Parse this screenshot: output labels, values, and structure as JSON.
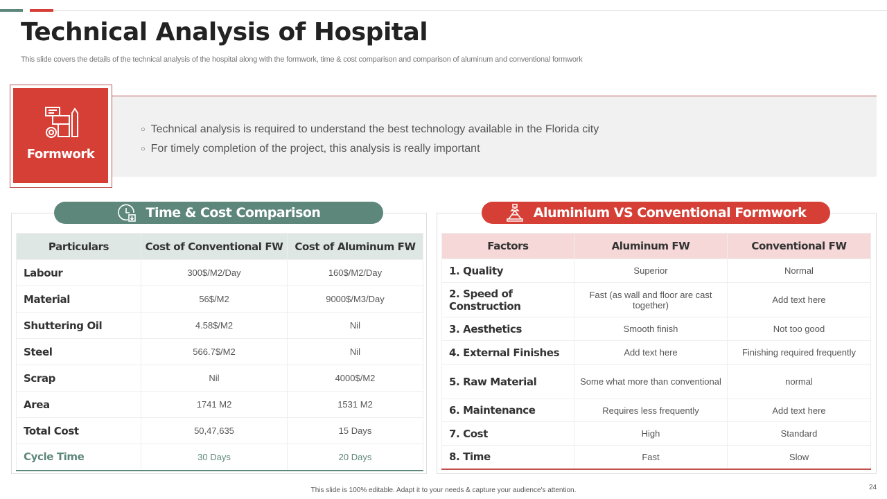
{
  "header": {
    "title": "Technical Analysis of Hospital",
    "subtitle": "This slide covers the details of the technical analysis of the hospital along with the formwork, time & cost comparison and comparison of aluminum and conventional formwork"
  },
  "formwork": {
    "label": "Formwork",
    "icon": "blueprint-gear-pencil-icon",
    "bullets": [
      "Technical analysis is required to understand the best technology  available in the Florida city",
      "For timely completion of the project, this analysis is really important"
    ]
  },
  "time_cost": {
    "title": "Time & Cost Comparison",
    "icon": "clock-download-icon",
    "color": "#5e877b",
    "headers": [
      "Particulars",
      "Cost of Conventional FW",
      "Cost of Aluminum FW"
    ],
    "rows": [
      [
        "Labour",
        "300$/M2/Day",
        "160$/M2/Day"
      ],
      [
        "Material",
        "56$/M2",
        "9000$/M3/Day"
      ],
      [
        "Shuttering Oil",
        "4.58$/M2",
        "Nil"
      ],
      [
        "Steel",
        "566.7$/M2",
        "Nil"
      ],
      [
        "Scrap",
        "Nil",
        "4000$/M2"
      ],
      [
        "Area",
        "1741 M2",
        "1531 M2"
      ],
      [
        "Total Cost",
        "50,47,635",
        "15 Days"
      ],
      [
        "Cycle Time",
        "30 Days",
        "20 Days"
      ]
    ]
  },
  "alu_conv": {
    "title": "Aluminium VS Conventional Formwork",
    "icon": "building-crane-icon",
    "color": "#d63f36",
    "headers": [
      "Factors",
      "Aluminum FW",
      "Conventional FW"
    ],
    "rows": [
      [
        "1. Quality",
        "Superior",
        "Normal"
      ],
      [
        "2. Speed of Construction",
        "Fast (as wall and floor are cast together)",
        "Add text here"
      ],
      [
        "3. Aesthetics",
        "Smooth finish",
        "Not too good"
      ],
      [
        "4. External Finishes",
        "Add text here",
        "Finishing required frequently"
      ],
      [
        "5. Raw Material",
        "Some what more than conventional",
        "normal"
      ],
      [
        "6. Maintenance",
        "Requires less frequently",
        "Add text here"
      ],
      [
        "7. Cost",
        "High",
        "Standard"
      ],
      [
        "8. Time",
        "Fast",
        "Slow"
      ]
    ]
  },
  "footer": {
    "text": "This slide is 100% editable. Adapt it to your needs & capture your audience's attention.",
    "page": "24"
  }
}
